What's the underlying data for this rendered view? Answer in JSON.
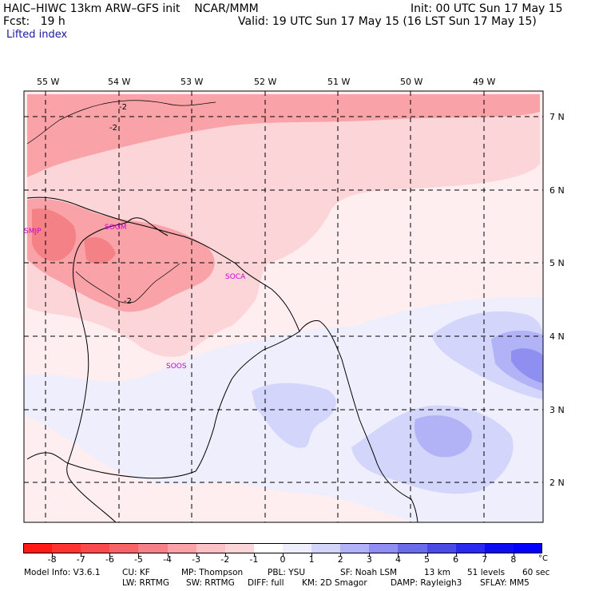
{
  "header": {
    "model_title": "HAIC–HIWC 13km ARW–GFS init    NCAR/MMM",
    "init_line": "Init: 00 UTC Sun 17 May 15",
    "fcst_line": "Fcst:   19 h",
    "valid_line": "Valid: 19 UTC Sun 17 May 15 (16 LST Sun 17 May 15)",
    "field_name": "Lifted index"
  },
  "map": {
    "lon_labels": [
      "55 W",
      "54 W",
      "53 W",
      "52 W",
      "51 W",
      "50 W",
      "49 W"
    ],
    "lat_labels": [
      "7 N",
      "6 N",
      "5 N",
      "4 N",
      "3 N",
      "2 N"
    ],
    "contour_labels": [
      "-2",
      "-2",
      "-2"
    ],
    "stations": [
      "SMJP",
      "SOGM",
      "SOCA",
      "SOOS"
    ],
    "colors": {
      "neg2": "#f9a3a8",
      "neg1": "#fcd5d8",
      "zero": "#feeeef",
      "pos0": "#eeeefd",
      "pos1": "#d4d5fb",
      "pos2": "#b2b3f6",
      "pos3": "#8e8ff0",
      "neg3": "#f48186"
    }
  },
  "colorbar": {
    "unit": "°C",
    "labels": [
      "-8",
      "-7",
      "-6",
      "-5",
      "-4",
      "-3",
      "-2",
      "-1",
      "0",
      "1",
      "2",
      "3",
      "4",
      "5",
      "6",
      "7",
      "8"
    ],
    "colors": [
      "#ff1a1a",
      "#ff3333",
      "#fb4a4e",
      "#f86367",
      "#f48186",
      "#f9a3a8",
      "#fcc1c4",
      "#fcd5d8",
      "#ffffff",
      "#eeeefd",
      "#d4d5fb",
      "#b2b3f6",
      "#8e8ff0",
      "#6a6bea",
      "#4a4be6",
      "#2a2aee",
      "#0c0cf0",
      "#0000ff"
    ]
  },
  "footer": {
    "line1": [
      "Model Info: V3.6.1",
      "CU: KF",
      "MP: Thompson",
      "PBL: YSU",
      "SF: Noah LSM",
      "13 km",
      "51 levels",
      "60 sec"
    ],
    "line2": [
      "LW: RRTMG",
      "SW: RRTMG",
      "DIFF: full",
      "KM: 2D Smagor",
      "DAMP: Rayleigh3",
      "SFLAY: MM5"
    ]
  }
}
